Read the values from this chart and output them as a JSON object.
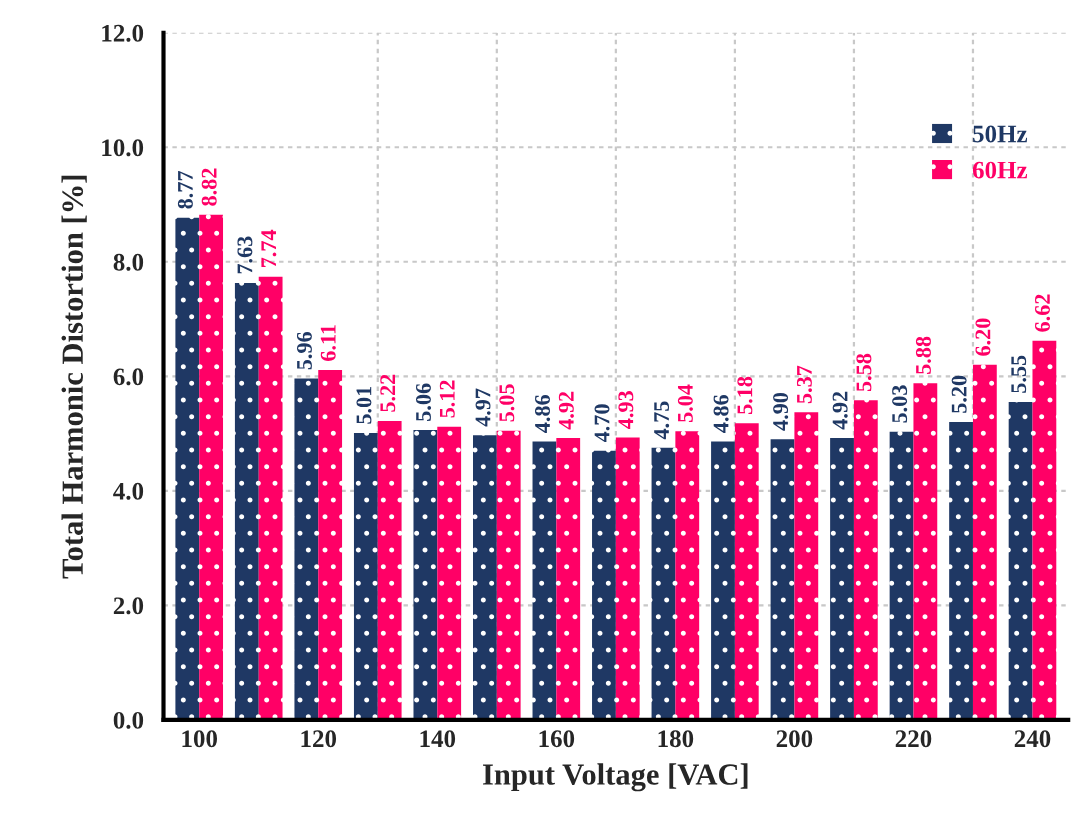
{
  "chart_data": {
    "type": "bar",
    "xlabel": "Input Voltage [VAC]",
    "ylabel": "Total Harmonic Distortion [%]",
    "categories": [
      "100",
      null,
      "120",
      null,
      "140",
      null,
      "160",
      null,
      "180",
      null,
      "200",
      null,
      "220",
      null,
      "240"
    ],
    "series": [
      {
        "name": "50Hz",
        "color": "#1f3864",
        "values": [
          8.77,
          7.63,
          5.96,
          5.01,
          5.06,
          4.97,
          4.86,
          4.7,
          4.75,
          4.86,
          4.9,
          4.92,
          5.03,
          5.2,
          5.55
        ],
        "value_labels": [
          "8.77",
          "7.63",
          "5.96",
          "5.01",
          "5.06",
          "4.97",
          "4.86",
          "4.70",
          "4.75",
          "4.86",
          "4.90",
          "4.92",
          "5.03",
          "5.20",
          "5.55"
        ]
      },
      {
        "name": "60Hz",
        "color": "#ff0066",
        "values": [
          8.82,
          7.74,
          6.11,
          5.22,
          5.12,
          5.05,
          4.92,
          4.93,
          5.04,
          5.18,
          5.37,
          5.58,
          5.88,
          6.2,
          6.62
        ],
        "value_labels": [
          "8.82",
          "7.74",
          "6.11",
          "5.22",
          "5.12",
          "5.05",
          "4.92",
          "4.93",
          "5.04",
          "5.18",
          "5.37",
          "5.58",
          "5.88",
          "6.20",
          "6.62"
        ]
      }
    ],
    "ylim": [
      0,
      12
    ],
    "yticks": [
      {
        "value": 0,
        "label": "0.0"
      },
      {
        "value": 2,
        "label": "2.0"
      },
      {
        "value": 4,
        "label": "4.0"
      },
      {
        "value": 6,
        "label": "6.0"
      },
      {
        "value": 8,
        "label": "8.0"
      },
      {
        "value": 10,
        "label": "10.0"
      },
      {
        "value": 12,
        "label": "12.0"
      }
    ],
    "grid": true,
    "legend": "top right"
  }
}
